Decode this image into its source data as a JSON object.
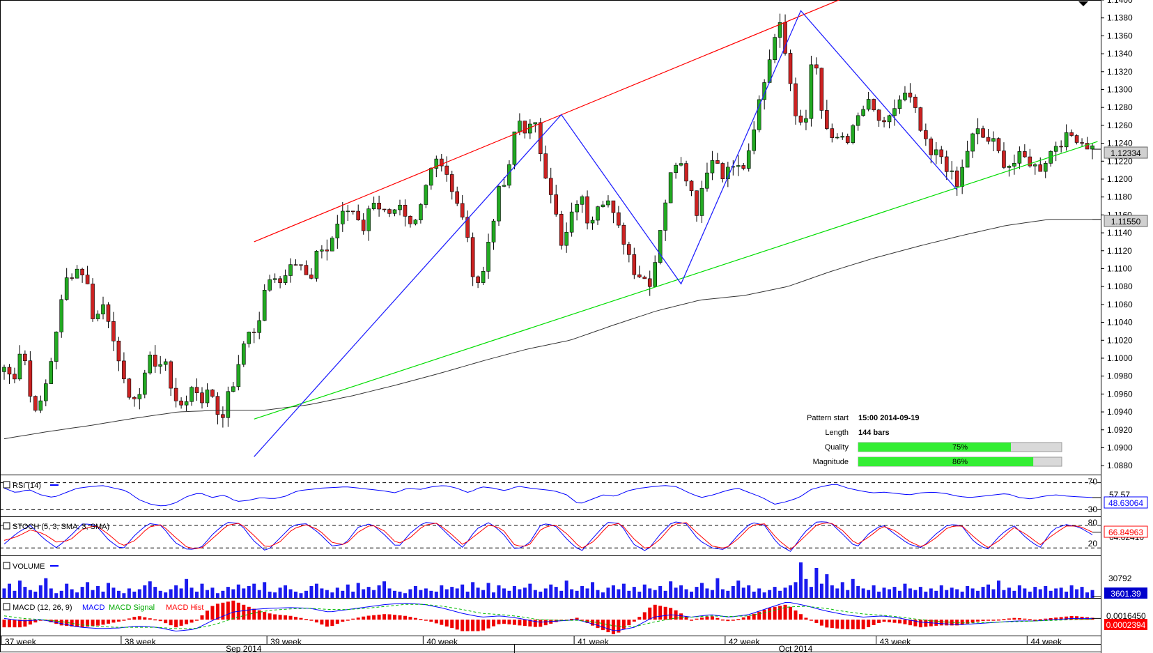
{
  "chart_data": {
    "type": "candlestick",
    "title": "",
    "main": {
      "ylim": [
        1.087,
        1.14
      ],
      "y_ticks": [
        "1.1400",
        "1.1380",
        "1.1360",
        "1.1340",
        "1.1320",
        "1.1300",
        "1.1280",
        "1.1260",
        "1.1240",
        "1.1220",
        "1.1200",
        "1.1180",
        "1.1160",
        "1.1140",
        "1.1120",
        "1.1100",
        "1.1080",
        "1.1060",
        "1.1040",
        "1.1020",
        "1.1000",
        "1.0980",
        "1.0960",
        "1.0940",
        "1.0920",
        "1.0900",
        "1.0880"
      ],
      "last_price_label": "1.12334",
      "ma_label": "1.11550",
      "bar_count": 210,
      "price_path": [
        1.099,
        1.0975,
        1.102,
        1.095,
        1.0945,
        1.0985,
        1.1045,
        1.109,
        1.11,
        1.1095,
        1.104,
        1.106,
        1.1035,
        1.0975,
        1.096,
        1.095,
        1.101,
        1.0985,
        1.1,
        1.0945,
        1.095,
        1.097,
        1.0955,
        1.0965,
        1.093,
        1.096,
        1.0985,
        1.1035,
        1.1025,
        1.1075,
        1.1095,
        1.1085,
        1.1115,
        1.1105,
        1.108,
        1.1125,
        1.112,
        1.115,
        1.1165,
        1.1165,
        1.1145,
        1.118,
        1.1165,
        1.1155,
        1.1165,
        1.1145,
        1.1155,
        1.1205,
        1.1225,
        1.1215,
        1.1175,
        1.116,
        1.11,
        1.108,
        1.114,
        1.1185,
        1.12,
        1.127,
        1.1255,
        1.126,
        1.1215,
        1.118,
        1.112,
        1.1155,
        1.1185,
        1.115,
        1.1175,
        1.118,
        1.115,
        1.113,
        1.11,
        1.109,
        1.1085,
        1.115,
        1.12,
        1.123,
        1.12,
        1.1165,
        1.121,
        1.1225,
        1.1205,
        1.1215,
        1.121,
        1.123,
        1.129,
        1.133,
        1.138,
        1.134,
        1.1275,
        1.126,
        1.135,
        1.127,
        1.124,
        1.125,
        1.1245,
        1.127,
        1.1285,
        1.127,
        1.1255,
        1.128,
        1.1295,
        1.1285,
        1.125,
        1.1225,
        1.123,
        1.121,
        1.119,
        1.123,
        1.1255,
        1.1245,
        1.124,
        1.122,
        1.1215,
        1.1225,
        1.122,
        1.121,
        1.1225,
        1.124,
        1.1245,
        1.125,
        1.124,
        1.1235
      ],
      "ma200_path": [
        1.091,
        1.0918,
        1.0925,
        1.0933,
        1.094,
        1.0942,
        1.0942,
        1.0948,
        1.0958,
        1.097,
        1.0983,
        1.0997,
        1.101,
        1.102,
        1.1037,
        1.1053,
        1.1065,
        1.107,
        1.108,
        1.1097,
        1.1112,
        1.1125,
        1.1137,
        1.1148,
        1.1155,
        1.1155
      ],
      "channel_upper": {
        "from_bar": 48,
        "from": 1.113,
        "to_bar": 162,
        "to": 1.1404
      },
      "channel_lower": {
        "from_bar": 48,
        "from": 1.0932,
        "to_bar": 210,
        "to": 1.1242
      },
      "zigzag": [
        {
          "bar": 48,
          "price": 1.089
        },
        {
          "bar": 107,
          "price": 1.1272
        },
        {
          "bar": 130,
          "price": 1.1083
        },
        {
          "bar": 153,
          "price": 1.1388
        },
        {
          "bar": 183,
          "price": 1.1188
        }
      ]
    },
    "x_labels": [
      {
        "bar": 0,
        "text": "37 week"
      },
      {
        "bar": 23,
        "text": "38 week"
      },
      {
        "bar": 51,
        "text": "39 week"
      },
      {
        "bar": 81,
        "text": "40 week"
      },
      {
        "bar": 110,
        "text": "41 week"
      },
      {
        "bar": 139,
        "text": "42 week"
      },
      {
        "bar": 168,
        "text": "43 week"
      },
      {
        "bar": 197,
        "text": "44 week"
      }
    ],
    "month_labels": [
      {
        "bar": 46,
        "text": "Sep 2014"
      },
      {
        "bar": 152,
        "text": "Oct 2014"
      }
    ],
    "pattern_info": {
      "pattern_start_label": "Pattern start",
      "pattern_start_value": "15:00 2014-09-19",
      "length_label": "Length",
      "length_value": "144 bars",
      "quality_label": "Quality",
      "quality_text": "75%",
      "quality_value": 75,
      "magnitude_label": "Magnitude",
      "magnitude_text": "86%",
      "magnitude_value": 86
    },
    "rsi": {
      "title": "RSI (14)",
      "levels": [
        "70",
        "30"
      ],
      "last_label": "48.63064",
      "behind_label": "57.57",
      "ylim": [
        20,
        80
      ],
      "path": [
        62,
        55,
        60,
        52,
        48,
        55,
        62,
        64,
        66,
        62,
        58,
        45,
        38,
        35,
        40,
        50,
        55,
        48,
        52,
        42,
        44,
        48,
        46,
        50,
        58,
        60,
        62,
        63,
        64,
        62,
        60,
        58,
        55,
        62,
        60,
        64,
        66,
        62,
        55,
        64,
        62,
        58,
        65,
        62,
        60,
        58,
        52,
        38,
        45,
        52,
        50,
        58,
        62,
        64,
        66,
        64,
        55,
        48,
        52,
        58,
        62,
        55,
        48,
        38,
        42,
        48,
        60,
        65,
        68,
        62,
        58,
        55,
        56,
        54,
        52,
        55,
        56,
        54,
        50,
        48,
        50,
        52,
        54,
        48,
        46,
        50,
        52,
        50,
        49,
        48
      ]
    },
    "stoch": {
      "title": "STOCH (5, 3, SMA, 3, SMA)",
      "last_label": "66.84963",
      "behind_label": "64.62410",
      "levels": [
        "80",
        "20"
      ],
      "ylim": [
        0,
        100
      ],
      "k_path": [
        30,
        60,
        80,
        45,
        20,
        50,
        85,
        80,
        40,
        15,
        55,
        85,
        80,
        35,
        15,
        20,
        60,
        88,
        85,
        40,
        10,
        45,
        80,
        85,
        60,
        25,
        30,
        75,
        85,
        55,
        20,
        60,
        88,
        85,
        50,
        20,
        70,
        88,
        60,
        15,
        30,
        85,
        80,
        40,
        10,
        50,
        88,
        85,
        30,
        10,
        55,
        90,
        85,
        40,
        20,
        15,
        55,
        88,
        80,
        30,
        10,
        60,
        90,
        88,
        55,
        20,
        60,
        82,
        55,
        30,
        20,
        55,
        82,
        80,
        35,
        15,
        55,
        80,
        45,
        20,
        70,
        82,
        75,
        55
      ],
      "d_path": [
        40,
        50,
        68,
        58,
        35,
        40,
        70,
        80,
        55,
        25,
        40,
        75,
        82,
        50,
        20,
        18,
        48,
        80,
        86,
        55,
        20,
        35,
        70,
        82,
        68,
        35,
        28,
        62,
        82,
        65,
        30,
        48,
        80,
        86,
        60,
        28,
        55,
        82,
        70,
        25,
        25,
        72,
        82,
        55,
        18,
        38,
        78,
        86,
        45,
        15,
        42,
        82,
        88,
        55,
        25,
        18,
        45,
        80,
        84,
        42,
        15,
        48,
        82,
        88,
        65,
        28,
        50,
        78,
        65,
        38,
        22,
        45,
        75,
        80,
        48,
        20,
        42,
        75,
        55,
        28,
        55,
        78,
        78,
        62
      ]
    },
    "volume": {
      "title": "VOLUME",
      "tick_label": "30792",
      "last_label": "3601.39",
      "max": 45000,
      "values": [
        12000,
        18000,
        9000,
        22000,
        14000,
        10000,
        8000,
        16000,
        25000,
        12000,
        6000,
        9000,
        18000,
        11000,
        7000,
        14000,
        20000,
        10000,
        15000,
        8000,
        19000,
        13000,
        9000,
        6000,
        12000,
        8000,
        11000,
        16000,
        21000,
        14000,
        9000,
        7000,
        11000,
        16000,
        12000,
        24000,
        13000,
        8000,
        18000,
        10000,
        13000,
        6000,
        9000,
        14000,
        11000,
        17000,
        12000,
        15000,
        18000,
        10000,
        20000,
        8000,
        7000,
        13000,
        16000,
        11000,
        8000,
        6000,
        9000,
        15000,
        18000,
        12000,
        10000,
        7000,
        13000,
        9000,
        17000,
        8000,
        19000,
        11000,
        14000,
        10000,
        16000,
        21000,
        12000,
        9000,
        8000,
        6000,
        11000,
        15000,
        10000,
        12000,
        9000,
        8000,
        16000,
        11000,
        14000,
        12000,
        17000,
        8000,
        20000,
        13000,
        10000,
        19000,
        7000,
        16000,
        12000,
        9000,
        15000,
        11000,
        13000,
        18000,
        10000,
        8000,
        12000,
        17000,
        14000,
        9000,
        22000,
        11000,
        9000,
        15000,
        12000,
        20000,
        10000,
        7000,
        13000,
        16000,
        11000,
        18000,
        9000,
        14000,
        8000,
        17000,
        12000,
        10000,
        15000,
        9000,
        21000,
        13000,
        16000,
        11000,
        8000,
        14000,
        19000,
        12000,
        10000,
        25000,
        11000,
        9000,
        15000,
        22000,
        13000,
        16000,
        8000,
        12000,
        7000,
        10000,
        14000,
        9000,
        13000,
        16000,
        20000,
        45000,
        24000,
        14000,
        38000,
        18000,
        30000,
        16000,
        12000,
        20000,
        10000,
        24000,
        15000,
        12000,
        10000,
        16000,
        8000,
        13000,
        11000,
        14000,
        9000,
        18000,
        12000,
        10000,
        14000,
        8000,
        12000,
        9000,
        16000,
        10000,
        13000,
        11000,
        8000,
        15000,
        12000,
        9000,
        14000,
        17000,
        11000,
        22000,
        10000,
        13000,
        9000,
        16000,
        12000,
        8000,
        14000,
        11000,
        15000,
        9000,
        12000,
        13000,
        8000,
        16000,
        11000,
        14000,
        7000,
        10000,
        4000,
        3600,
        3000,
        3600
      ]
    },
    "macd": {
      "title": "MACD (12, 26, 9)",
      "series_legend": [
        "MACD",
        "MACD Signal",
        "MACD Hist"
      ],
      "tick_label": "0.0016450",
      "last_label": "0.0002394",
      "ylim": [
        -0.0025,
        0.0032
      ],
      "macd_path": [
        0.0002,
        -0.0002,
        0.0,
        -0.0006,
        -0.0012,
        -0.0014,
        -0.0013,
        -0.001,
        -0.0012,
        -0.0018,
        -0.0015,
        0.0,
        0.0012,
        0.0016,
        0.0018,
        0.0019,
        0.0018,
        0.0012,
        0.0016,
        0.002,
        0.0024,
        0.0026,
        0.0024,
        0.0018,
        0.001,
        0.0004,
        0.0006,
        0.0002,
        -0.0004,
        -0.0002,
        0.0,
        -0.0008,
        -0.0018,
        -0.0012,
        0.0004,
        0.0008,
        0.0004,
        0.0008,
        0.0004,
        0.0008,
        0.0018,
        0.0028,
        0.0022,
        0.0014,
        0.0008,
        0.0004,
        0.0006,
        0.0002,
        -0.0004,
        -0.0006,
        -0.0008,
        -0.0006,
        -0.0004,
        -0.0002,
        -0.0002,
        0.0,
        0.0002,
        0.0002
      ],
      "signal_path": [
        0.0006,
        0.0002,
        0.0,
        -0.0003,
        -0.0008,
        -0.0011,
        -0.0012,
        -0.0012,
        -0.0012,
        -0.0014,
        -0.0014,
        -0.0008,
        0.0002,
        0.001,
        0.0015,
        0.0017,
        0.0018,
        0.0016,
        0.0016,
        0.0018,
        0.0021,
        0.0024,
        0.0024,
        0.0021,
        0.0016,
        0.001,
        0.0008,
        0.0005,
        0.0,
        -0.0001,
        -0.0001,
        -0.0004,
        -0.001,
        -0.0011,
        -0.0004,
        0.0002,
        0.0004,
        0.0006,
        0.0005,
        0.0006,
        0.0012,
        0.002,
        0.0021,
        0.0018,
        0.0013,
        0.0009,
        0.0007,
        0.0004,
        0.0,
        -0.0003,
        -0.0005,
        -0.0005,
        -0.0004,
        -0.0003,
        -0.0002,
        -0.0001,
        0.0,
        0.0001
      ]
    }
  }
}
